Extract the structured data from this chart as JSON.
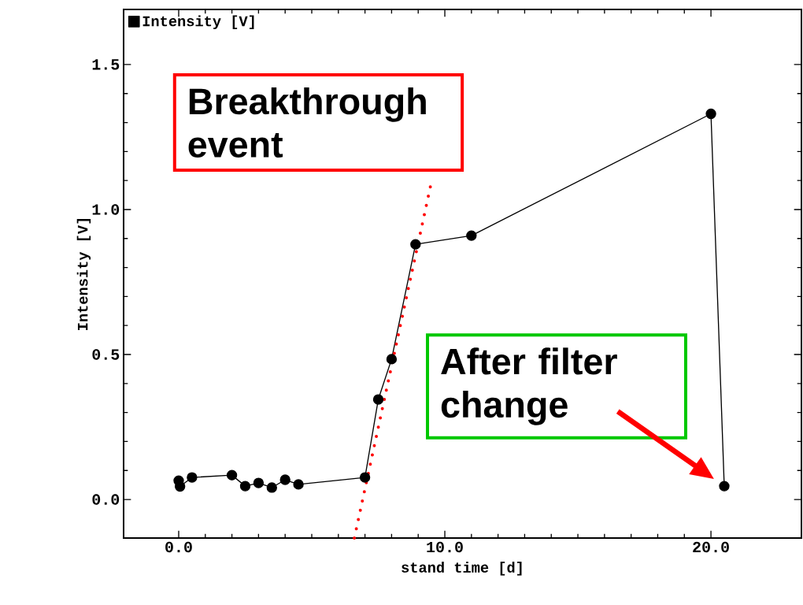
{
  "chart_data": {
    "type": "line",
    "xlabel": "stand time [d]",
    "ylabel": "Intensity [V]",
    "xlim": [
      -2.07,
      23.4
    ],
    "ylim": [
      -0.133,
      1.69
    ],
    "xticks": [
      {
        "value": 0,
        "label": "0.0"
      },
      {
        "value": 10,
        "label": "10.0"
      },
      {
        "value": 20,
        "label": "20.0"
      }
    ],
    "yticks": [
      {
        "value": 0,
        "label": "0.0"
      },
      {
        "value": 0.5,
        "label": "0.5"
      },
      {
        "value": 1,
        "label": "1.0"
      },
      {
        "value": 1.5,
        "label": "1.5"
      }
    ],
    "legend": "top left",
    "grid": false,
    "marker": "circle",
    "series": [
      {
        "name": "Intensity [V]",
        "color": "#000000",
        "x": [
          0.0,
          0.05,
          0.5,
          2.0,
          2.5,
          3.0,
          3.5,
          4.0,
          4.5,
          7.0,
          7.5,
          8.0,
          8.9,
          11.0,
          20.0,
          20.5
        ],
        "values": [
          0.065,
          0.045,
          0.076,
          0.084,
          0.046,
          0.057,
          0.041,
          0.068,
          0.052,
          0.076,
          0.345,
          0.484,
          0.88,
          0.91,
          1.33,
          0.046
        ]
      },
      {
        "type": "line",
        "color": "#ff0000",
        "line_style": "dotted",
        "marker": "none",
        "x": [
          6.6,
          9.47
        ],
        "values": [
          -0.133,
          1.084
        ]
      }
    ],
    "annotations": [
      "Breakthrough event",
      "After filter change"
    ]
  }
}
